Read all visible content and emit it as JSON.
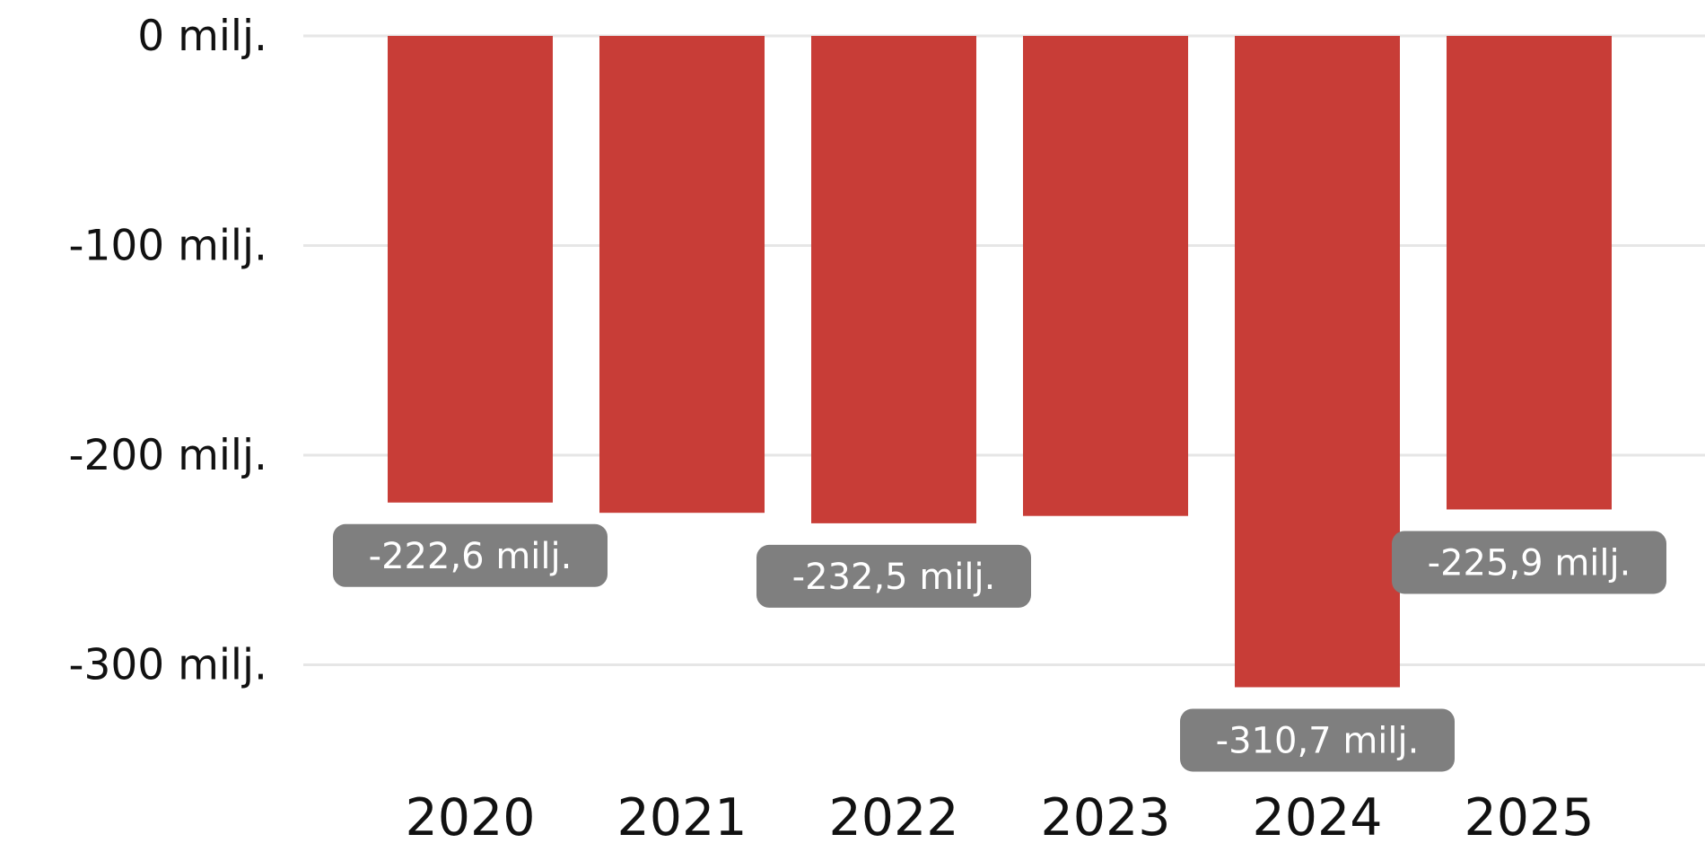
{
  "chart_data": {
    "type": "bar",
    "categories": [
      "2020",
      "2021",
      "2022",
      "2023",
      "2024",
      "2025"
    ],
    "values": [
      -222.6,
      -227.5,
      -232.5,
      -229.0,
      -310.7,
      -225.9
    ],
    "data_labels": [
      "-222,6 milj.",
      null,
      "-232,5 milj.",
      null,
      "-310,7 milj.",
      "-225,9 milj."
    ],
    "y_ticks": [
      {
        "value": 0,
        "label": "0 milj."
      },
      {
        "value": -100,
        "label": "-100 milj."
      },
      {
        "value": -200,
        "label": "-200 milj."
      },
      {
        "value": -300,
        "label": "-300 milj."
      }
    ],
    "ylim": [
      -370,
      0
    ],
    "grid": true,
    "title": "",
    "xlabel": "",
    "ylabel": "",
    "colors": {
      "bar": "#c83d37",
      "label_bg": "#7f7f7f",
      "label_text": "#ffffff",
      "grid": "#e6e6e6",
      "text": "#111111"
    }
  }
}
